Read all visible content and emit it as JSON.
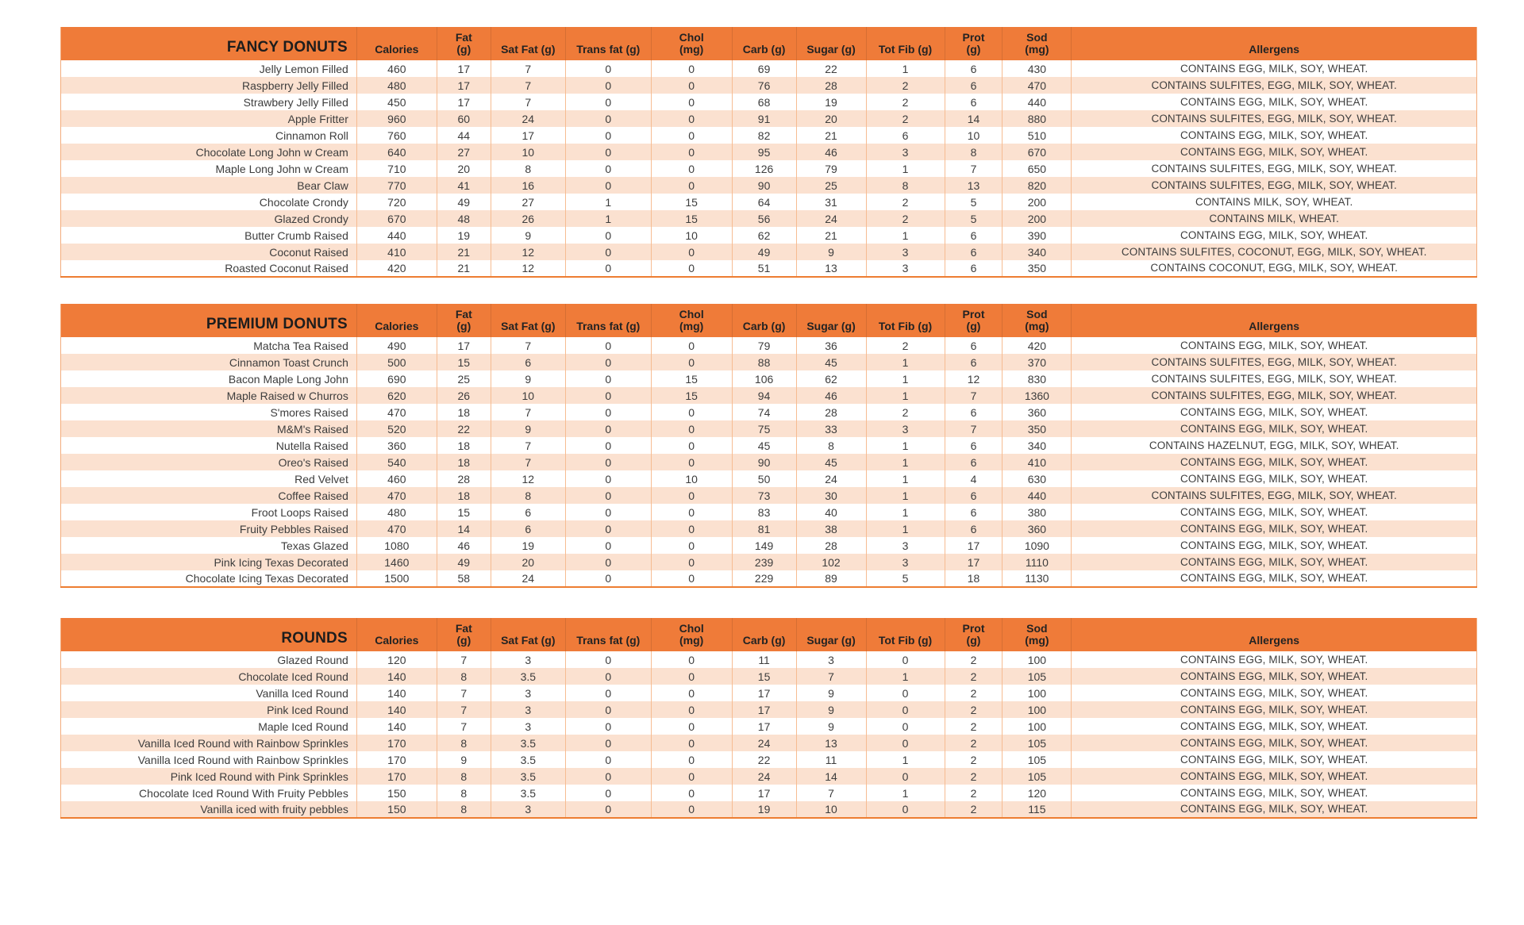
{
  "colors": {
    "header_orange": "#ef7b39",
    "row_stripe_peach": "#fbe1d0",
    "row_stripe_white": "#ffffff",
    "grid_line": "#f6bc92",
    "table_bottom_border": "#ed7d31",
    "text": "#3d3d3d"
  },
  "columns": [
    "Calories",
    "Fat\n(g)",
    "Sat Fat (g)",
    "Trans fat (g)",
    "Chol\n(mg)",
    "Carb (g)",
    "Sugar (g)",
    "Tot Fib (g)",
    "Prot\n(g)",
    "Sod\n(mg)",
    "Allergens"
  ],
  "tables": [
    {
      "title": "FANCY DONUTS",
      "rows": [
        [
          "Jelly Lemon Filled",
          "460",
          "17",
          "7",
          "0",
          "0",
          "69",
          "22",
          "1",
          "6",
          "430",
          "CONTAINS EGG, MILK, SOY, WHEAT."
        ],
        [
          "Raspberry Jelly Filled",
          "480",
          "17",
          "7",
          "0",
          "0",
          "76",
          "28",
          "2",
          "6",
          "470",
          "CONTAINS SULFITES, EGG, MILK, SOY, WHEAT."
        ],
        [
          "Strawbery Jelly Filled",
          "450",
          "17",
          "7",
          "0",
          "0",
          "68",
          "19",
          "2",
          "6",
          "440",
          "CONTAINS EGG, MILK, SOY, WHEAT."
        ],
        [
          "Apple Fritter",
          "960",
          "60",
          "24",
          "0",
          "0",
          "91",
          "20",
          "2",
          "14",
          "880",
          "CONTAINS SULFITES, EGG, MILK, SOY, WHEAT."
        ],
        [
          "Cinnamon Roll",
          "760",
          "44",
          "17",
          "0",
          "0",
          "82",
          "21",
          "6",
          "10",
          "510",
          "CONTAINS EGG, MILK, SOY, WHEAT."
        ],
        [
          "Chocolate Long John w Cream",
          "640",
          "27",
          "10",
          "0",
          "0",
          "95",
          "46",
          "3",
          "8",
          "670",
          "CONTAINS EGG, MILK, SOY, WHEAT."
        ],
        [
          "Maple Long John w Cream",
          "710",
          "20",
          "8",
          "0",
          "0",
          "126",
          "79",
          "1",
          "7",
          "650",
          "CONTAINS SULFITES, EGG, MILK, SOY, WHEAT."
        ],
        [
          "Bear Claw",
          "770",
          "41",
          "16",
          "0",
          "0",
          "90",
          "25",
          "8",
          "13",
          "820",
          "CONTAINS SULFITES, EGG, MILK, SOY, WHEAT."
        ],
        [
          "Chocolate Crondy",
          "720",
          "49",
          "27",
          "1",
          "15",
          "64",
          "31",
          "2",
          "5",
          "200",
          "CONTAINS MILK, SOY, WHEAT."
        ],
        [
          "Glazed Crondy",
          "670",
          "48",
          "26",
          "1",
          "15",
          "56",
          "24",
          "2",
          "5",
          "200",
          "CONTAINS MILK, WHEAT."
        ],
        [
          "Butter Crumb Raised",
          "440",
          "19",
          "9",
          "0",
          "10",
          "62",
          "21",
          "1",
          "6",
          "390",
          "CONTAINS EGG, MILK, SOY, WHEAT."
        ],
        [
          "Coconut Raised",
          "410",
          "21",
          "12",
          "0",
          "0",
          "49",
          "9",
          "3",
          "6",
          "340",
          "CONTAINS SULFITES, COCONUT, EGG, MILK, SOY, WHEAT."
        ],
        [
          "Roasted Coconut Raised",
          "420",
          "21",
          "12",
          "0",
          "0",
          "51",
          "13",
          "3",
          "6",
          "350",
          "CONTAINS COCONUT, EGG, MILK, SOY, WHEAT."
        ]
      ]
    },
    {
      "title": "PREMIUM DONUTS",
      "rows": [
        [
          "Matcha Tea Raised",
          "490",
          "17",
          "7",
          "0",
          "0",
          "79",
          "36",
          "2",
          "6",
          "420",
          "CONTAINS EGG, MILK, SOY, WHEAT."
        ],
        [
          "Cinnamon Toast Crunch",
          "500",
          "15",
          "6",
          "0",
          "0",
          "88",
          "45",
          "1",
          "6",
          "370",
          "CONTAINS SULFITES, EGG, MILK, SOY, WHEAT."
        ],
        [
          "Bacon Maple Long John",
          "690",
          "25",
          "9",
          "0",
          "15",
          "106",
          "62",
          "1",
          "12",
          "830",
          "CONTAINS SULFITES, EGG, MILK, SOY, WHEAT."
        ],
        [
          "Maple Raised w Churros",
          "620",
          "26",
          "10",
          "0",
          "15",
          "94",
          "46",
          "1",
          "7",
          "1360",
          "CONTAINS SULFITES, EGG, MILK, SOY, WHEAT."
        ],
        [
          "S'mores Raised",
          "470",
          "18",
          "7",
          "0",
          "0",
          "74",
          "28",
          "2",
          "6",
          "360",
          "CONTAINS EGG, MILK, SOY, WHEAT."
        ],
        [
          "M&M's Raised",
          "520",
          "22",
          "9",
          "0",
          "0",
          "75",
          "33",
          "3",
          "7",
          "350",
          "CONTAINS EGG, MILK, SOY, WHEAT."
        ],
        [
          "Nutella Raised",
          "360",
          "18",
          "7",
          "0",
          "0",
          "45",
          "8",
          "1",
          "6",
          "340",
          "CONTAINS HAZELNUT, EGG, MILK, SOY, WHEAT."
        ],
        [
          "Oreo's Raised",
          "540",
          "18",
          "7",
          "0",
          "0",
          "90",
          "45",
          "1",
          "6",
          "410",
          "CONTAINS EGG, MILK, SOY, WHEAT."
        ],
        [
          "Red Velvet",
          "460",
          "28",
          "12",
          "0",
          "10",
          "50",
          "24",
          "1",
          "4",
          "630",
          "CONTAINS EGG, MILK, SOY, WHEAT."
        ],
        [
          "Coffee Raised",
          "470",
          "18",
          "8",
          "0",
          "0",
          "73",
          "30",
          "1",
          "6",
          "440",
          "CONTAINS SULFITES, EGG, MILK, SOY, WHEAT."
        ],
        [
          "Froot Loops Raised",
          "480",
          "15",
          "6",
          "0",
          "0",
          "83",
          "40",
          "1",
          "6",
          "380",
          "CONTAINS EGG, MILK, SOY, WHEAT."
        ],
        [
          "Fruity Pebbles Raised",
          "470",
          "14",
          "6",
          "0",
          "0",
          "81",
          "38",
          "1",
          "6",
          "360",
          "CONTAINS EGG, MILK, SOY, WHEAT."
        ],
        [
          "Texas Glazed",
          "1080",
          "46",
          "19",
          "0",
          "0",
          "149",
          "28",
          "3",
          "17",
          "1090",
          "CONTAINS EGG, MILK, SOY, WHEAT."
        ],
        [
          "Pink Icing Texas Decorated",
          "1460",
          "49",
          "20",
          "0",
          "0",
          "239",
          "102",
          "3",
          "17",
          "1110",
          "CONTAINS EGG, MILK, SOY, WHEAT."
        ],
        [
          "Chocolate Icing Texas Decorated",
          "1500",
          "58",
          "24",
          "0",
          "0",
          "229",
          "89",
          "5",
          "18",
          "1130",
          "CONTAINS EGG, MILK, SOY, WHEAT."
        ]
      ]
    },
    {
      "title": "ROUNDS",
      "rows": [
        [
          "Glazed Round",
          "120",
          "7",
          "3",
          "0",
          "0",
          "11",
          "3",
          "0",
          "2",
          "100",
          "CONTAINS EGG, MILK, SOY, WHEAT."
        ],
        [
          "Chocolate Iced Round",
          "140",
          "8",
          "3.5",
          "0",
          "0",
          "15",
          "7",
          "1",
          "2",
          "105",
          "CONTAINS EGG, MILK, SOY, WHEAT."
        ],
        [
          "Vanilla Iced Round",
          "140",
          "7",
          "3",
          "0",
          "0",
          "17",
          "9",
          "0",
          "2",
          "100",
          "CONTAINS EGG, MILK, SOY, WHEAT."
        ],
        [
          "Pink Iced Round",
          "140",
          "7",
          "3",
          "0",
          "0",
          "17",
          "9",
          "0",
          "2",
          "100",
          "CONTAINS EGG, MILK, SOY, WHEAT."
        ],
        [
          "Maple Iced Round",
          "140",
          "7",
          "3",
          "0",
          "0",
          "17",
          "9",
          "0",
          "2",
          "100",
          "CONTAINS EGG, MILK, SOY, WHEAT."
        ],
        [
          "Vanilla Iced Round with Rainbow Sprinkles",
          "170",
          "8",
          "3.5",
          "0",
          "0",
          "24",
          "13",
          "0",
          "2",
          "105",
          "CONTAINS EGG, MILK, SOY, WHEAT."
        ],
        [
          "Vanilla Iced Round with Rainbow Sprinkles",
          "170",
          "9",
          "3.5",
          "0",
          "0",
          "22",
          "11",
          "1",
          "2",
          "105",
          "CONTAINS EGG, MILK, SOY, WHEAT."
        ],
        [
          "Pink Iced Round with Pink Sprinkles",
          "170",
          "8",
          "3.5",
          "0",
          "0",
          "24",
          "14",
          "0",
          "2",
          "105",
          "CONTAINS EGG, MILK, SOY, WHEAT."
        ],
        [
          "Chocolate Iced Round With Fruity Pebbles",
          "150",
          "8",
          "3.5",
          "0",
          "0",
          "17",
          "7",
          "1",
          "2",
          "120",
          "CONTAINS EGG, MILK, SOY, WHEAT."
        ],
        [
          "Vanilla iced with fruity pebbles",
          "150",
          "8",
          "3",
          "0",
          "0",
          "19",
          "10",
          "0",
          "2",
          "115",
          "CONTAINS EGG, MILK, SOY, WHEAT."
        ]
      ]
    }
  ]
}
